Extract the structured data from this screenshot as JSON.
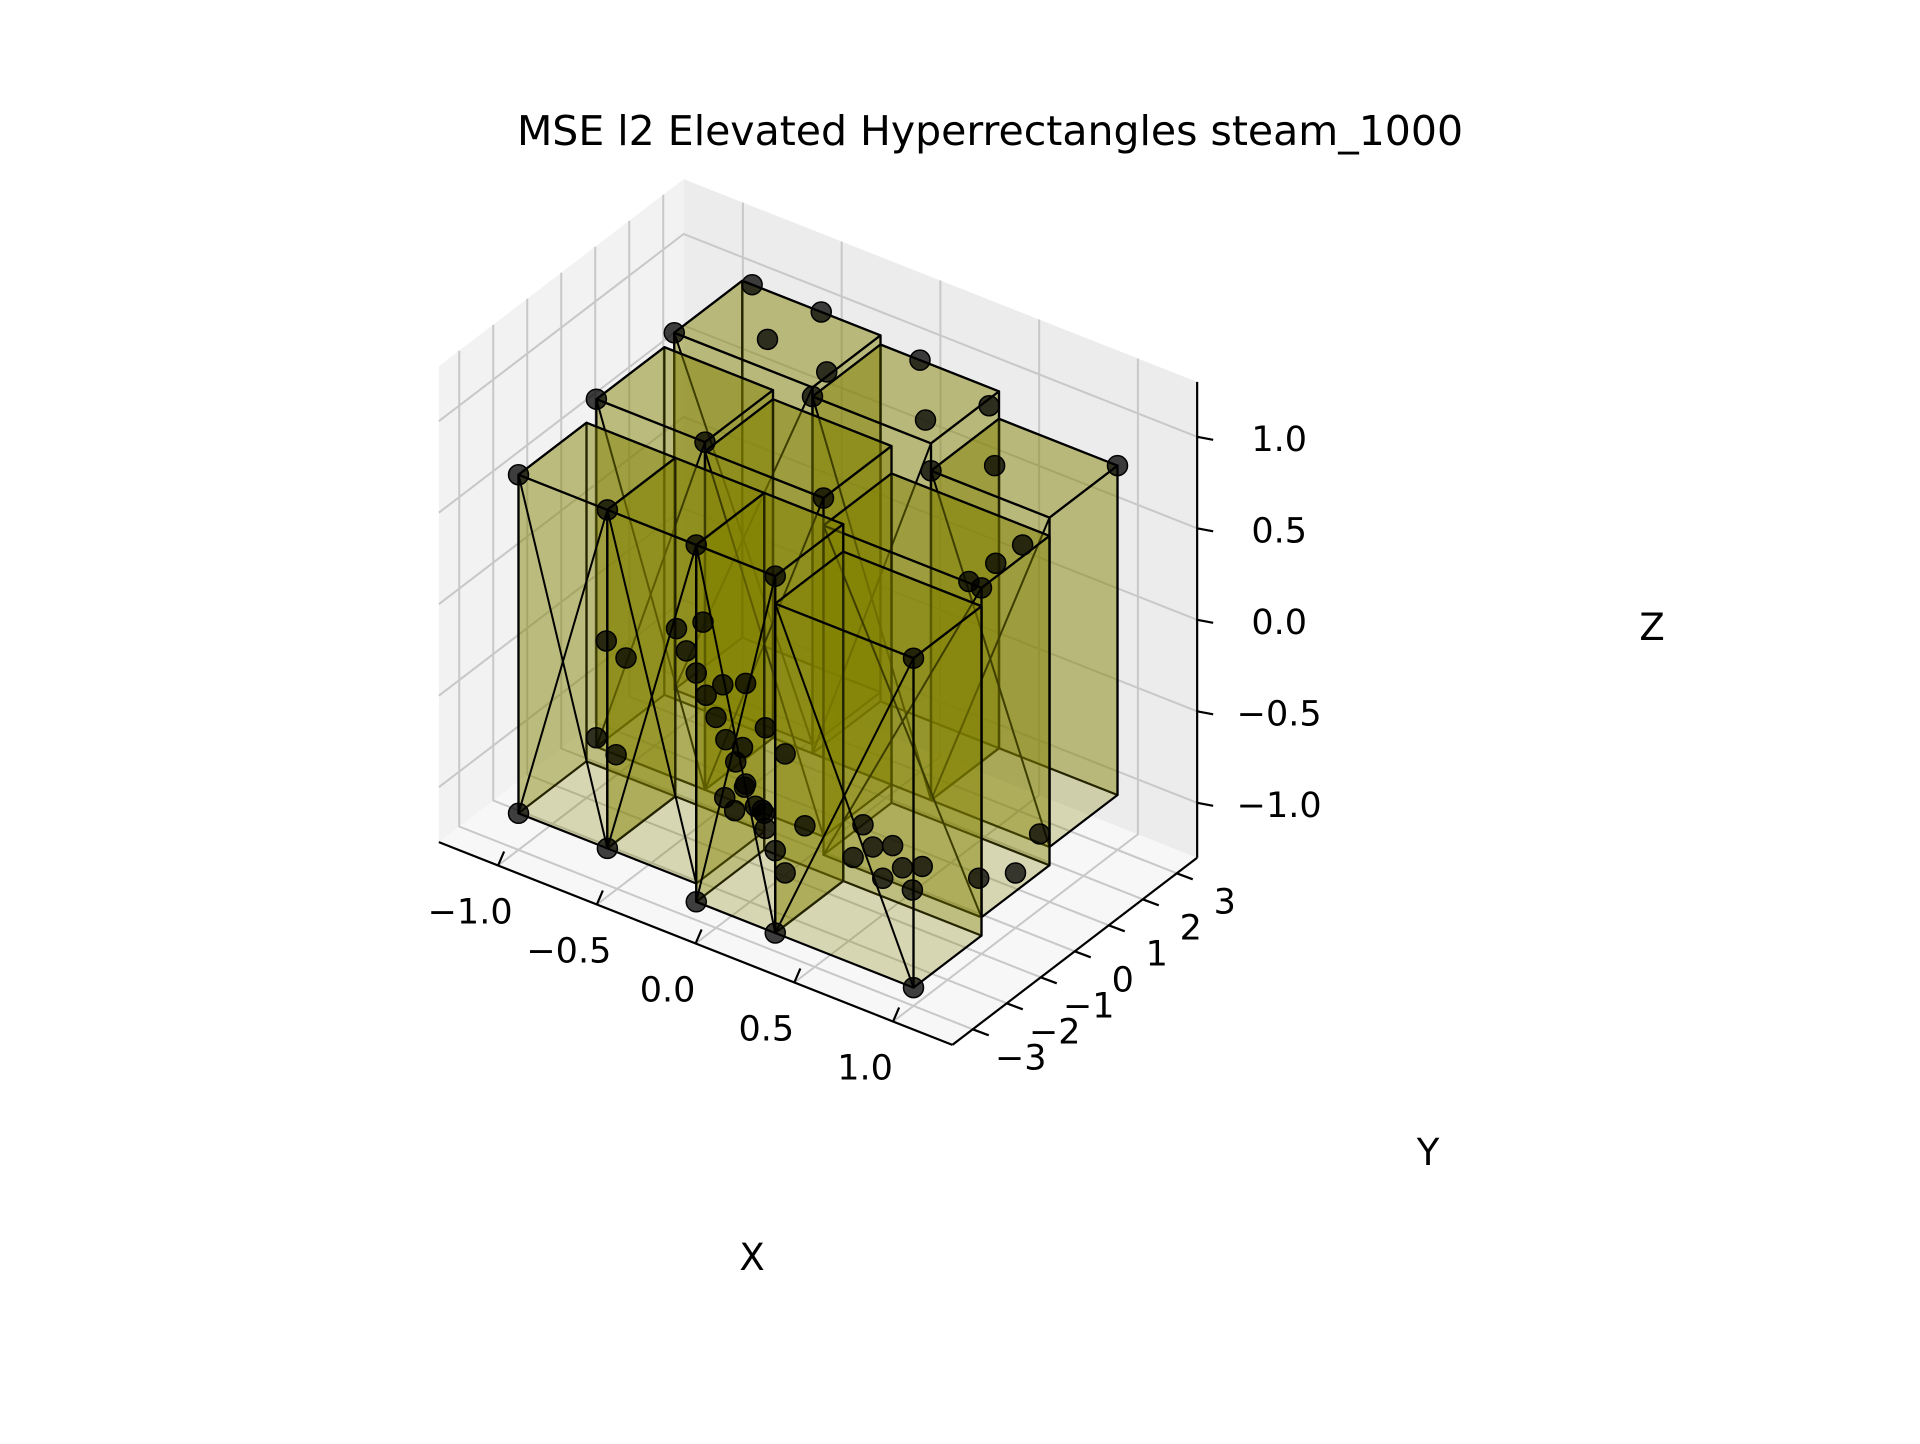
{
  "chart_data": {
    "type": "scatter",
    "projection": "3d",
    "title": "MSE l2 Elevated Hyperrectangles steam_1000",
    "xlabel": "X",
    "ylabel": "Y",
    "zlabel": "Z",
    "xlim": [
      -1.3,
      1.3
    ],
    "ylim": [
      -3.6,
      3.6
    ],
    "zlim": [
      -1.3,
      1.3
    ],
    "x_ticks": [
      "−1.0",
      "−0.5",
      "0.0",
      "0.5",
      "1.0"
    ],
    "y_ticks": [
      "−3",
      "−2",
      "−1",
      "0",
      "1",
      "2",
      "3"
    ],
    "z_ticks": [
      "−1.0",
      "−0.5",
      "0.0",
      "0.5",
      "1.0"
    ],
    "grid": true,
    "colors": {
      "box_face": "#808000",
      "box_edge": "#000000",
      "points": "#000000",
      "pane": "#f2f2f2",
      "gridline": "#c8c8c8"
    },
    "boxes": [
      {
        "x": [
          -1.0,
          -0.55
        ],
        "y": [
          -3.0,
          -1.0
        ],
        "z": [
          -1.1,
          0.75
        ]
      },
      {
        "x": [
          -0.55,
          -0.1
        ],
        "y": [
          -3.0,
          -1.0
        ],
        "z": [
          -1.1,
          0.75
        ]
      },
      {
        "x": [
          -0.1,
          0.3
        ],
        "y": [
          -3.0,
          -1.0
        ],
        "z": [
          -1.2,
          0.75
        ]
      },
      {
        "x": [
          0.3,
          1.0
        ],
        "y": [
          -3.0,
          -1.0
        ],
        "z": [
          -1.2,
          0.6
        ]
      },
      {
        "x": [
          -0.95,
          -0.4
        ],
        "y": [
          -1.0,
          1.0
        ],
        "z": [
          -1.0,
          0.9
        ]
      },
      {
        "x": [
          -0.4,
          0.2
        ],
        "y": [
          -1.0,
          1.0
        ],
        "z": [
          -1.0,
          0.85
        ]
      },
      {
        "x": [
          0.2,
          1.0
        ],
        "y": [
          -1.0,
          1.0
        ],
        "z": [
          -1.1,
          0.7
        ]
      },
      {
        "x": [
          -0.9,
          -0.2
        ],
        "y": [
          1.0,
          3.0
        ],
        "z": [
          -0.95,
          1.0
        ]
      },
      {
        "x": [
          -0.2,
          0.4
        ],
        "y": [
          1.0,
          3.0
        ],
        "z": [
          -1.0,
          0.95
        ]
      },
      {
        "x": [
          0.4,
          1.0
        ],
        "y": [
          1.0,
          3.0
        ],
        "z": [
          -1.0,
          0.8
        ]
      }
    ],
    "points": [
      {
        "x": -0.2,
        "y": -3.0,
        "z": 0.25
      },
      {
        "x": -0.15,
        "y": -3.0,
        "z": 0.15
      },
      {
        "x": -0.1,
        "y": -3.0,
        "z": 0.05
      },
      {
        "x": -0.05,
        "y": -3.0,
        "z": -0.05
      },
      {
        "x": 0.0,
        "y": -3.0,
        "z": -0.15
      },
      {
        "x": 0.05,
        "y": -3.0,
        "z": -0.25
      },
      {
        "x": 0.1,
        "y": -3.0,
        "z": -0.35
      },
      {
        "x": 0.15,
        "y": -3.0,
        "z": -0.45
      },
      {
        "x": 0.2,
        "y": -3.0,
        "z": -0.55
      },
      {
        "x": 0.25,
        "y": -3.0,
        "z": -0.65
      },
      {
        "x": 0.3,
        "y": -3.0,
        "z": -0.75
      },
      {
        "x": 0.35,
        "y": -3.0,
        "z": -0.85
      },
      {
        "x": -0.1,
        "y": -2.8,
        "z": 0.3
      },
      {
        "x": 0.0,
        "y": -2.8,
        "z": 0.0
      },
      {
        "x": 0.1,
        "y": -2.8,
        "z": -0.3
      },
      {
        "x": 0.2,
        "y": -2.8,
        "z": -0.6
      },
      {
        "x": 0.35,
        "y": -3.0,
        "z": -0.2
      },
      {
        "x": 0.45,
        "y": -3.0,
        "z": -0.55
      },
      {
        "x": 0.15,
        "y": -3.0,
        "z": 0.1
      },
      {
        "x": 0.25,
        "y": -3.0,
        "z": -0.1
      },
      {
        "x": -1.0,
        "y": -3.0,
        "z": -1.1
      },
      {
        "x": -0.55,
        "y": -3.0,
        "z": -1.1
      },
      {
        "x": -0.1,
        "y": -3.0,
        "z": -1.2
      },
      {
        "x": 0.3,
        "y": -3.0,
        "z": -1.2
      },
      {
        "x": 1.0,
        "y": -3.0,
        "z": -1.2
      },
      {
        "x": 1.0,
        "y": -3.0,
        "z": 0.6
      },
      {
        "x": -1.0,
        "y": -3.0,
        "z": 0.75
      },
      {
        "x": -0.55,
        "y": -3.0,
        "z": 0.75
      },
      {
        "x": -0.1,
        "y": -3.0,
        "z": 0.75
      },
      {
        "x": 0.3,
        "y": -3.0,
        "z": 0.75
      },
      {
        "x": 0.35,
        "y": -1.0,
        "z": -1.05
      },
      {
        "x": 0.45,
        "y": -1.0,
        "z": -0.95
      },
      {
        "x": 0.55,
        "y": -1.0,
        "z": -0.9
      },
      {
        "x": 0.6,
        "y": -1.0,
        "z": -1.0
      },
      {
        "x": 0.65,
        "y": -1.0,
        "z": -1.1
      },
      {
        "x": 0.5,
        "y": -1.0,
        "z": -1.1
      },
      {
        "x": 0.7,
        "y": -1.0,
        "z": -0.95
      },
      {
        "x": 0.4,
        "y": -1.0,
        "z": -0.85
      },
      {
        "x": -0.3,
        "y": -1.0,
        "z": -1.0
      },
      {
        "x": -0.2,
        "y": -1.0,
        "z": -0.9
      },
      {
        "x": -0.1,
        "y": -1.0,
        "z": -1.0
      },
      {
        "x": -0.25,
        "y": -1.0,
        "z": -1.05
      },
      {
        "x": -0.95,
        "y": -1.0,
        "z": -0.95
      },
      {
        "x": -0.85,
        "y": -1.0,
        "z": -1.0
      },
      {
        "x": -0.9,
        "y": -1.0,
        "z": -0.4
      },
      {
        "x": -0.8,
        "y": -1.0,
        "z": -0.45
      },
      {
        "x": -0.95,
        "y": -1.0,
        "z": 0.9
      },
      {
        "x": -0.4,
        "y": -1.0,
        "z": 0.9
      },
      {
        "x": 0.2,
        "y": -1.0,
        "z": 0.85
      },
      {
        "x": 1.0,
        "y": -1.0,
        "z": 0.7
      },
      {
        "x": 0.85,
        "y": -0.5,
        "z": 0.6
      },
      {
        "x": 0.9,
        "y": 0.0,
        "z": 0.65
      },
      {
        "x": 0.95,
        "y": 0.5,
        "z": 0.7
      },
      {
        "x": 0.9,
        "y": -0.5,
        "z": -1.0
      },
      {
        "x": 1.0,
        "y": 0.0,
        "z": -1.0
      },
      {
        "x": 0.95,
        "y": 1.0,
        "z": -0.95
      },
      {
        "x": -0.9,
        "y": 1.0,
        "z": 1.0
      },
      {
        "x": -0.2,
        "y": 1.0,
        "z": 0.95
      },
      {
        "x": 0.4,
        "y": 1.0,
        "z": 0.8
      },
      {
        "x": -0.85,
        "y": 3.0,
        "z": 1.0
      },
      {
        "x": -0.5,
        "y": 3.0,
        "z": 1.0
      },
      {
        "x": 0.0,
        "y": 3.0,
        "z": 0.95
      },
      {
        "x": 0.35,
        "y": 3.0,
        "z": 0.85
      },
      {
        "x": 1.0,
        "y": 3.0,
        "z": 0.8
      },
      {
        "x": -0.6,
        "y": 2.0,
        "z": 0.95
      },
      {
        "x": -0.3,
        "y": 2.0,
        "z": 0.9
      },
      {
        "x": 0.2,
        "y": 2.0,
        "z": 0.85
      },
      {
        "x": 0.55,
        "y": 2.0,
        "z": 0.75
      }
    ]
  }
}
